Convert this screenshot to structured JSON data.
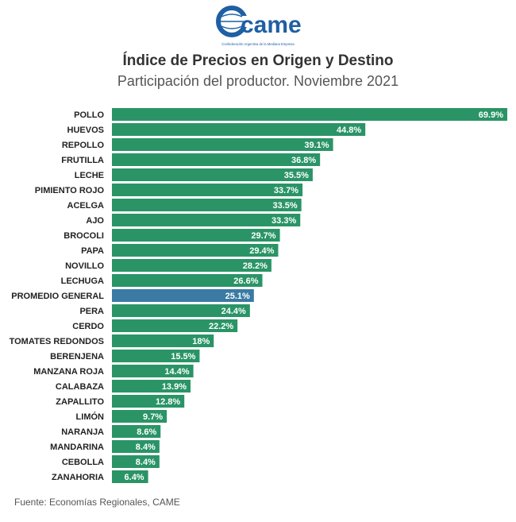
{
  "brand": {
    "logo_text": "came",
    "tagline": "Confederación Argentina de la Mediana Empresa"
  },
  "header": {
    "title": "Índice de Precios en Origen y Destino",
    "subtitle": "Participación del productor. Noviembre 2021"
  },
  "footer": {
    "source": "Fuente: Economías Regionales, CAME"
  },
  "colors": {
    "bar": "#2a9466",
    "highlight": "#3a7aa3",
    "logo": "#1f5fa3"
  },
  "chart_data": {
    "type": "bar",
    "orientation": "horizontal",
    "categories": [
      "POLLO",
      "HUEVOS",
      "REPOLLO",
      "FRUTILLA",
      "LECHE",
      "PIMIENTO ROJO",
      "ACELGA",
      "AJO",
      "BROCOLI",
      "PAPA",
      "NOVILLO",
      "LECHUGA",
      "PROMEDIO GENERAL",
      "PERA",
      "CERDO",
      "TOMATES REDONDOS",
      "BERENJENA",
      "MANZANA ROJA",
      "CALABAZA",
      "ZAPALLITO",
      "LIMÓN",
      "NARANJA",
      "MANDARINA",
      "CEBOLLA",
      "ZANAHORIA"
    ],
    "values": [
      69.9,
      44.8,
      39.1,
      36.8,
      35.5,
      33.7,
      33.5,
      33.3,
      29.7,
      29.4,
      28.2,
      26.6,
      25.1,
      24.4,
      22.2,
      18,
      15.5,
      14.4,
      13.9,
      12.8,
      9.7,
      8.6,
      8.4,
      8.4,
      6.4
    ],
    "labels": [
      "69.9%",
      "44.8%",
      "39.1%",
      "36.8%",
      "35.5%",
      "33.7%",
      "33.5%",
      "33.3%",
      "29.7%",
      "29.4%",
      "28.2%",
      "26.6%",
      "25.1%",
      "24.4%",
      "22.2%",
      "18%",
      "15.5%",
      "14.4%",
      "13.9%",
      "12.8%",
      "9.7%",
      "8.6%",
      "8.4%",
      "8.4%",
      "6.4%"
    ],
    "highlight_category": "PROMEDIO GENERAL",
    "xlim": [
      0,
      69.9
    ],
    "grid": false,
    "legend": "none",
    "title": "Índice de Precios en Origen y Destino",
    "subtitle": "Participación del productor. Noviembre 2021",
    "xlabel": "",
    "ylabel": ""
  }
}
